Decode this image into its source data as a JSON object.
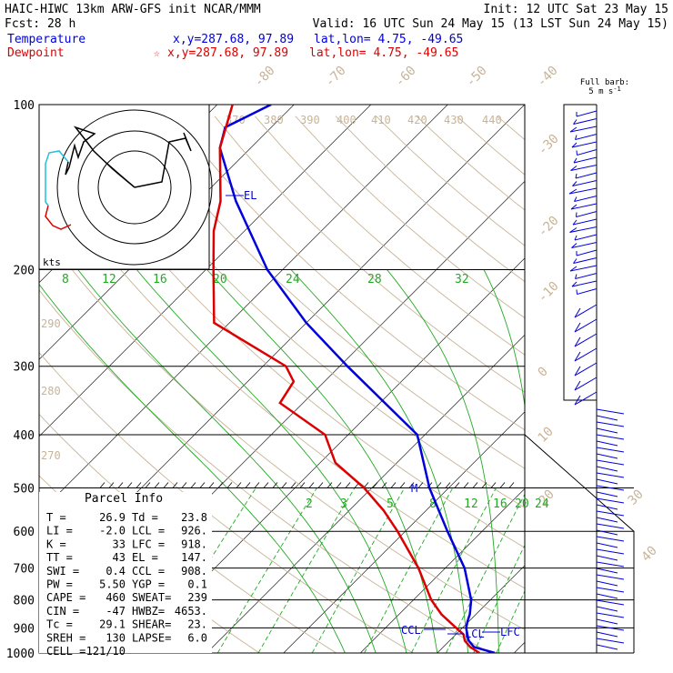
{
  "header": {
    "line1_left": "HAIC-HIWC 13km ARW-GFS init   NCAR/MMM",
    "line1_right": "Init: 12 UTC Sat 23 May 15",
    "line2_left": "Fcst:   28 h",
    "line2_right": "Valid: 16 UTC Sun 24 May 15 (13 LST Sun 24 May 15)",
    "temp_label": "Temperature",
    "temp_coords": "x,y=287.68, 97.89",
    "temp_latlon": "lat,lon=  4.75, -49.65",
    "dew_label": "Dewpoint",
    "dew_coords": "x,y=287.68, 97.89",
    "dew_latlon": "lat,lon=  4.75, -49.65",
    "dew_marker": "☆",
    "barb_title": "Full barb:",
    "barb_value": "5 m s",
    "barb_exp": "-1"
  },
  "colors": {
    "temperature": "#0000dd",
    "dewpoint": "#dd0000",
    "theta": "#c8b498",
    "mixing": "#22aa22",
    "grid": "#000000",
    "hodo_near": "#20c0e0"
  },
  "parcel": {
    "title": "Parcel Info",
    "rows": [
      {
        "l": "T  =",
        "lv": "26.9",
        "r": "Td =",
        "rv": "23.8"
      },
      {
        "l": "LI =",
        "lv": "-2.0",
        "r": "LCL =",
        "rv": "926."
      },
      {
        "l": "K  =",
        "lv": "33",
        "r": "LFC =",
        "rv": "918."
      },
      {
        "l": "TT =",
        "lv": "43",
        "r": "EL =",
        "rv": "147."
      },
      {
        "l": "SWI =",
        "lv": "0.4",
        "r": "CCL =",
        "rv": "908."
      },
      {
        "l": "PW =",
        "lv": "5.50",
        "r": "YGP =",
        "rv": "0.1"
      },
      {
        "l": "CAPE =",
        "lv": "460",
        "r": "SWEAT=",
        "rv": "239"
      },
      {
        "l": "CIN =",
        "lv": "-47",
        "r": "HWBZ=",
        "rv": "4653."
      },
      {
        "l": "Tc =",
        "lv": "29.1",
        "r": "SHEAR=",
        "rv": "23."
      },
      {
        "l": "SREH =",
        "lv": "130",
        "r": "LAPSE=",
        "rv": "6.0"
      },
      {
        "l": "CELL =",
        "lv": "121/10",
        "r": "",
        "rv": ""
      }
    ]
  },
  "chart_data": {
    "type": "line",
    "pressure_labels": [
      "100",
      "200",
      "300",
      "400",
      "500",
      "600",
      "700",
      "800",
      "900",
      "1000"
    ],
    "pressure_levels": [
      100,
      200,
      300,
      400,
      500,
      600,
      700,
      800,
      900,
      1000
    ],
    "temperature_tick_labels": [
      "-80",
      "-70",
      "-60",
      "-50",
      "-40",
      "-30",
      "-20",
      "-10",
      "0",
      "10",
      "20",
      "30",
      "40"
    ],
    "theta_labels": [
      "370",
      "380",
      "390",
      "400",
      "410",
      "420",
      "430",
      "440"
    ],
    "theta_left_labels": [
      "290",
      "280",
      "270"
    ],
    "mixing_ratio_upper_labels": [
      "8",
      "12",
      "16",
      "20",
      "24",
      "28",
      "32"
    ],
    "mixing_ratio_lower_labels": [
      "2",
      "3",
      "5",
      "8",
      "12",
      "16",
      "20",
      "24"
    ],
    "level_labels": {
      "el": "EL",
      "ccl": "CCL",
      "lcl": "LCL",
      "lfc": "LFC",
      "m": "M"
    },
    "hodograph_label": "kts",
    "series": [
      {
        "name": "Temperature",
        "points": [
          [
            1000,
            27.5
          ],
          [
            975,
            24
          ],
          [
            950,
            22.5
          ],
          [
            925,
            21.5
          ],
          [
            900,
            20.5
          ],
          [
            875,
            19.8
          ],
          [
            850,
            19.2
          ],
          [
            800,
            17.5
          ],
          [
            700,
            12.5
          ],
          [
            600,
            5.5
          ],
          [
            500,
            -2.5
          ],
          [
            400,
            -11
          ],
          [
            300,
            -29
          ],
          [
            250,
            -40
          ],
          [
            200,
            -52
          ],
          [
            150,
            -65
          ],
          [
            120,
            -74
          ],
          [
            110,
            -76
          ],
          [
            100,
            -73
          ]
        ]
      },
      {
        "name": "Dewpoint",
        "points": [
          [
            1000,
            25.5
          ],
          [
            975,
            23.5
          ],
          [
            950,
            22
          ],
          [
            925,
            21
          ],
          [
            900,
            19.2
          ],
          [
            850,
            15.5
          ],
          [
            800,
            12.3
          ],
          [
            700,
            6.5
          ],
          [
            600,
            -1
          ],
          [
            550,
            -5.5
          ],
          [
            500,
            -11
          ],
          [
            450,
            -18
          ],
          [
            400,
            -23
          ],
          [
            350,
            -33
          ],
          [
            320,
            -34
          ],
          [
            300,
            -37
          ],
          [
            250,
            -52
          ],
          [
            200,
            -59
          ],
          [
            170,
            -64
          ],
          [
            150,
            -67
          ],
          [
            120,
            -74
          ],
          [
            100,
            -78
          ]
        ]
      }
    ]
  }
}
